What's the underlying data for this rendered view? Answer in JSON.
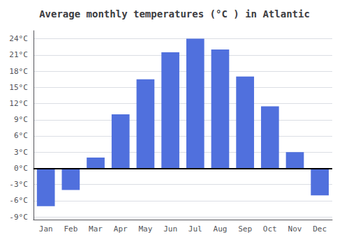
{
  "chart_data": {
    "type": "bar",
    "title": "Average monthly temperatures (°C ) in Atlantic",
    "categories": [
      "Jan",
      "Feb",
      "Mar",
      "Apr",
      "May",
      "Jun",
      "Jul",
      "Aug",
      "Sep",
      "Oct",
      "Nov",
      "Dec"
    ],
    "values": [
      -7.0,
      -4.0,
      2.0,
      10.0,
      16.5,
      21.5,
      24.0,
      22.0,
      17.0,
      11.5,
      3.0,
      -5.0
    ],
    "ylim": [
      -9.5,
      25.5
    ],
    "yticks": [
      {
        "value": -9,
        "label": "-9°C"
      },
      {
        "value": -6,
        "label": "-6°C"
      },
      {
        "value": -3,
        "label": "-3°C"
      },
      {
        "value": 0,
        "label": "0°C"
      },
      {
        "value": 3,
        "label": "3°C"
      },
      {
        "value": 6,
        "label": "6°C"
      },
      {
        "value": 9,
        "label": "9°C"
      },
      {
        "value": 12,
        "label": "12°C"
      },
      {
        "value": 15,
        "label": "15°C"
      },
      {
        "value": 18,
        "label": "18°C"
      },
      {
        "value": 21,
        "label": "21°C"
      },
      {
        "value": 24,
        "label": "24°C"
      }
    ],
    "grid": true
  }
}
